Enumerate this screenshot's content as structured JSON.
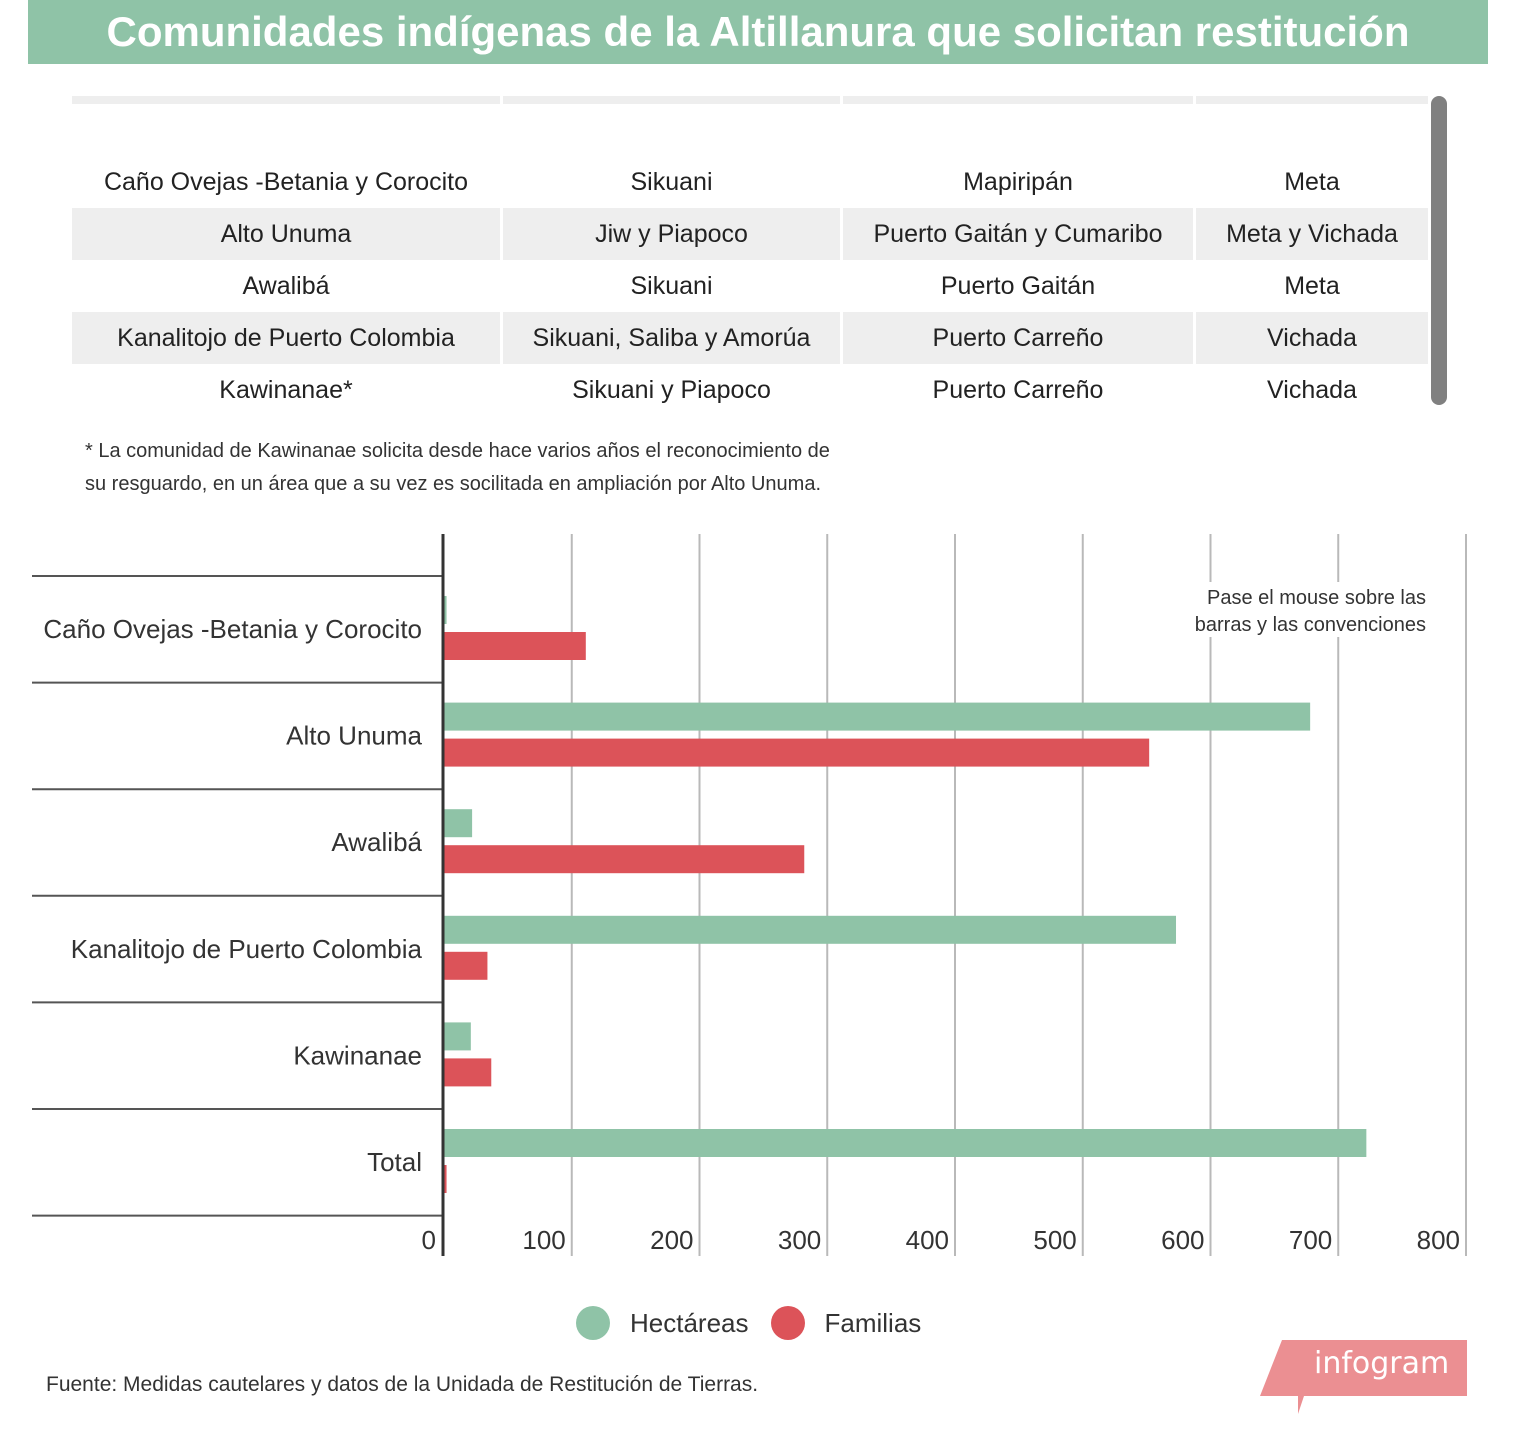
{
  "title": "Comunidades indígenas de la Altillanura que solicitan restitución",
  "table": {
    "rows": [
      [
        "Caño Ovejas -Betania y Corocito",
        "Sikuani",
        "Mapiripán",
        "Meta"
      ],
      [
        "Alto Unuma",
        "Jiw y Piapoco",
        "Puerto Gaitán y Cumaribo",
        "Meta y Vichada"
      ],
      [
        "Awalibá",
        "Sikuani",
        "Puerto Gaitán",
        "Meta"
      ],
      [
        "Kanalitojo de Puerto Colombia",
        "Sikuani, Saliba y Amorúa",
        "Puerto Carreño",
        "Vichada"
      ],
      [
        "Kawinanae*",
        "Sikuani y Piapoco",
        "Puerto Carreño",
        "Vichada"
      ]
    ]
  },
  "footnote_line1": "* La comunidad de Kawinanae solicita desde hace varios años el reconocimiento de",
  "footnote_line2": "su resguardo, en un área que a su vez es socilitada en ampliación por Alto Unuma.",
  "chart_data": {
    "type": "bar",
    "orientation": "horizontal",
    "categories": [
      "Caño Ovejas -Betania y Corocito",
      "Alto Unuma",
      "Awalibá",
      "Kanalitojo de Puerto Colombia",
      "Kawinanae",
      "Total"
    ],
    "series": [
      {
        "name": "Hectáreas",
        "color": "#8fc3a7",
        "values": [
          2,
          678,
          22,
          573,
          21,
          722
        ]
      },
      {
        "name": "Familias",
        "color": "#dc5359",
        "values": [
          111,
          552,
          282,
          34,
          37,
          2
        ]
      }
    ],
    "xlim": [
      0,
      800
    ],
    "xticks": [
      0,
      100,
      200,
      300,
      400,
      500,
      600,
      700,
      800
    ],
    "grid": "vertical",
    "legend": "bottom-center",
    "annotation": [
      "Pase el mouse sobre las",
      "barras y las convenciones"
    ]
  },
  "source": "Fuente: Medidas cautelares y datos de la Unidada de Restitución de Tierras.",
  "brand": "infogram",
  "colors": {
    "accent": "#8fc3a7",
    "secondary": "#dc5359",
    "brand": "#eb8f92"
  }
}
